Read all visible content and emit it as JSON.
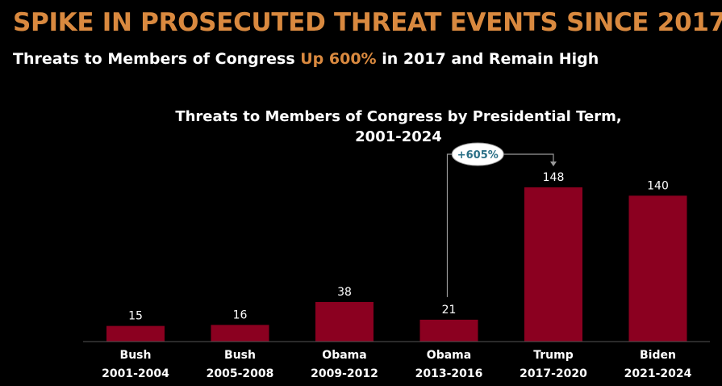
{
  "headline": "SPIKE IN PROSECUTED THREAT EVENTS SINCE 2017",
  "subhead": {
    "before": "Threats to Members of Congress ",
    "highlight": "Up 600%",
    "after": " in 2017 and Remain High"
  },
  "colors": {
    "headline": "#d9893f",
    "bar": "#8b0020",
    "background": "#000000",
    "callout_text": "#2a6f86"
  },
  "chart_data": {
    "type": "bar",
    "title": "Threats to Members of Congress by Presidential Term,",
    "title_line2": "2001-2024",
    "categories": [
      [
        "Bush",
        "2001-2004"
      ],
      [
        "Bush",
        "2005-2008"
      ],
      [
        "Obama",
        "2009-2012"
      ],
      [
        "Obama",
        "2013-2016"
      ],
      [
        "Trump",
        "2017-2020"
      ],
      [
        "Biden",
        "2021-2024"
      ]
    ],
    "values": [
      15,
      16,
      38,
      21,
      148,
      140
    ],
    "ylim": [
      0,
      148
    ],
    "grid": false,
    "annotation": {
      "text": "+605%",
      "from_index": 3,
      "to_index": 4
    }
  }
}
